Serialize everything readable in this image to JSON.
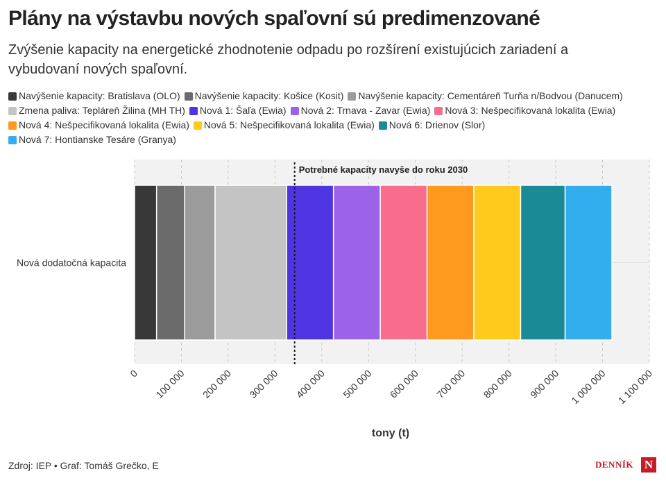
{
  "header": {
    "title": "Plány na výstavbu nových spaľovní sú predimenzované",
    "subtitle": "Zvýšenie kapacity na energetické zhodnotenie odpadu po rozšírení existujúcich zariadení a vybudovaní nových spaľovní."
  },
  "footer": {
    "source": "Zdroj: IEP • Graf: Tomáš Grečko, E",
    "logo_text": "DENNÍK",
    "logo_letter": "N"
  },
  "chart_data": {
    "type": "bar",
    "orientation": "horizontal",
    "stacked": true,
    "categories": [
      "Nová dodatočná kapacita"
    ],
    "series": [
      {
        "name": "Navýšenie kapacity: Bratislava (OLO)",
        "color": "#383838",
        "values": [
          47000
        ]
      },
      {
        "name": "Navýšenie kapacity: Košice (Kosit)",
        "color": "#6b6b6b",
        "values": [
          60000
        ]
      },
      {
        "name": "Navýšenie kapacity: Cementáreň Turňa n/Bodvou (Danucem)",
        "color": "#9b9b9b",
        "values": [
          65000
        ]
      },
      {
        "name": "Zmena paliva: Tepláreň Žilina (MH TH)",
        "color": "#c4c4c4",
        "values": [
          153000
        ]
      },
      {
        "name": "Nová 1: Šaľa (Ewia)",
        "color": "#4f35e2",
        "values": [
          100000
        ]
      },
      {
        "name": "Nová 2: Trnava - Zavar (Ewia)",
        "color": "#9c63e8",
        "values": [
          100000
        ]
      },
      {
        "name": "Nová 3: Nešpecifikovaná lokalita (Ewia)",
        "color": "#f86c8c",
        "values": [
          100000
        ]
      },
      {
        "name": "Nová 4: Nešpecifikovaná lokalita (Ewia)",
        "color": "#ff9a1f",
        "values": [
          100000
        ]
      },
      {
        "name": "Nová 5: Nešpecifikovaná lokalita (Ewia)",
        "color": "#ffca1c",
        "values": [
          100000
        ]
      },
      {
        "name": "Nová 6: Drienov (Slor)",
        "color": "#1a8a96",
        "values": [
          95000
        ]
      },
      {
        "name": "Nová 7: Hontianske Tesáre (Granya)",
        "color": "#32aeee",
        "values": [
          100000
        ]
      }
    ],
    "xlim": [
      0,
      1100000
    ],
    "xticks": [
      0,
      100000,
      200000,
      300000,
      400000,
      500000,
      600000,
      700000,
      800000,
      900000,
      1000000,
      1100000
    ],
    "xtick_labels": [
      "0",
      "100 000",
      "200 000",
      "300 000",
      "400 000",
      "500 000",
      "600 000",
      "700 000",
      "800 000",
      "900 000",
      "1 000 000",
      "1 100 000"
    ],
    "xlabel": "tony (t)",
    "ylabel": "",
    "grid": true,
    "reference_line": {
      "value": 342000,
      "label": "Potrebné kapacity navyše do roku 2030"
    },
    "legend_position": "top"
  }
}
